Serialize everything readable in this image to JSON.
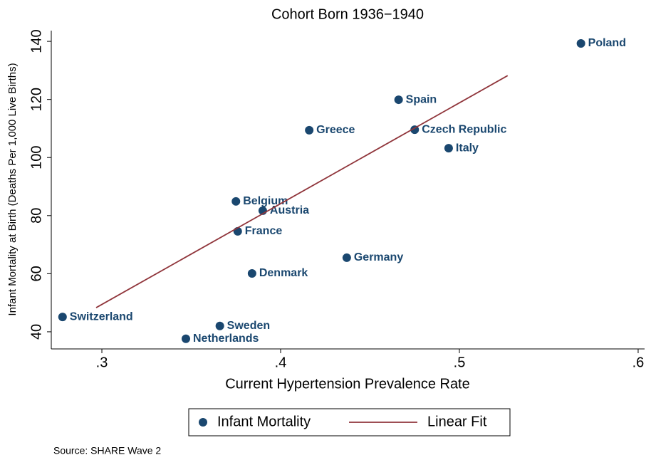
{
  "chart_data": {
    "type": "scatter",
    "title": "Cohort Born 1936−1940",
    "x_label": "Current Hypertension Prevalence Rate",
    "y_label": "Infant Mortality at Birth (Deaths Per 1,000 Live Births)",
    "source": "Source: SHARE Wave 2",
    "xlim": [
      0.2717,
      0.6036
    ],
    "ylim": [
      34.1,
      143.7
    ],
    "xticks": [
      {
        "value": 0.3,
        "label": ".3"
      },
      {
        "value": 0.4,
        "label": ".4"
      },
      {
        "value": 0.5,
        "label": ".5"
      },
      {
        "value": 0.6,
        "label": ".6"
      }
    ],
    "yticks": [
      40,
      60,
      80,
      100,
      120,
      140
    ],
    "grid": false,
    "legend": "bottom",
    "series": [
      {
        "name": "Infant Mortality",
        "kind": "points",
        "color": "#1a476f",
        "labels": [
          "Poland",
          "Spain",
          "Greece",
          "Czech Republic",
          "Italy",
          "Belgium",
          "Austria",
          "France",
          "Germany",
          "Denmark",
          "Switzerland",
          "Sweden",
          "Netherlands"
        ],
        "x": [
          0.568,
          0.466,
          0.416,
          0.475,
          0.494,
          0.375,
          0.39,
          0.376,
          0.437,
          0.384,
          0.278,
          0.366,
          0.347
        ],
        "values": [
          139.3,
          119.9,
          109.4,
          109.6,
          103.2,
          84.9,
          81.7,
          74.6,
          65.5,
          60.1,
          45.1,
          42.0,
          37.6
        ]
      },
      {
        "name": "Linear Fit",
        "kind": "line",
        "color": "#90353b",
        "x": [
          0.2968,
          0.527
        ],
        "values": [
          48.3,
          128.2
        ]
      }
    ]
  }
}
